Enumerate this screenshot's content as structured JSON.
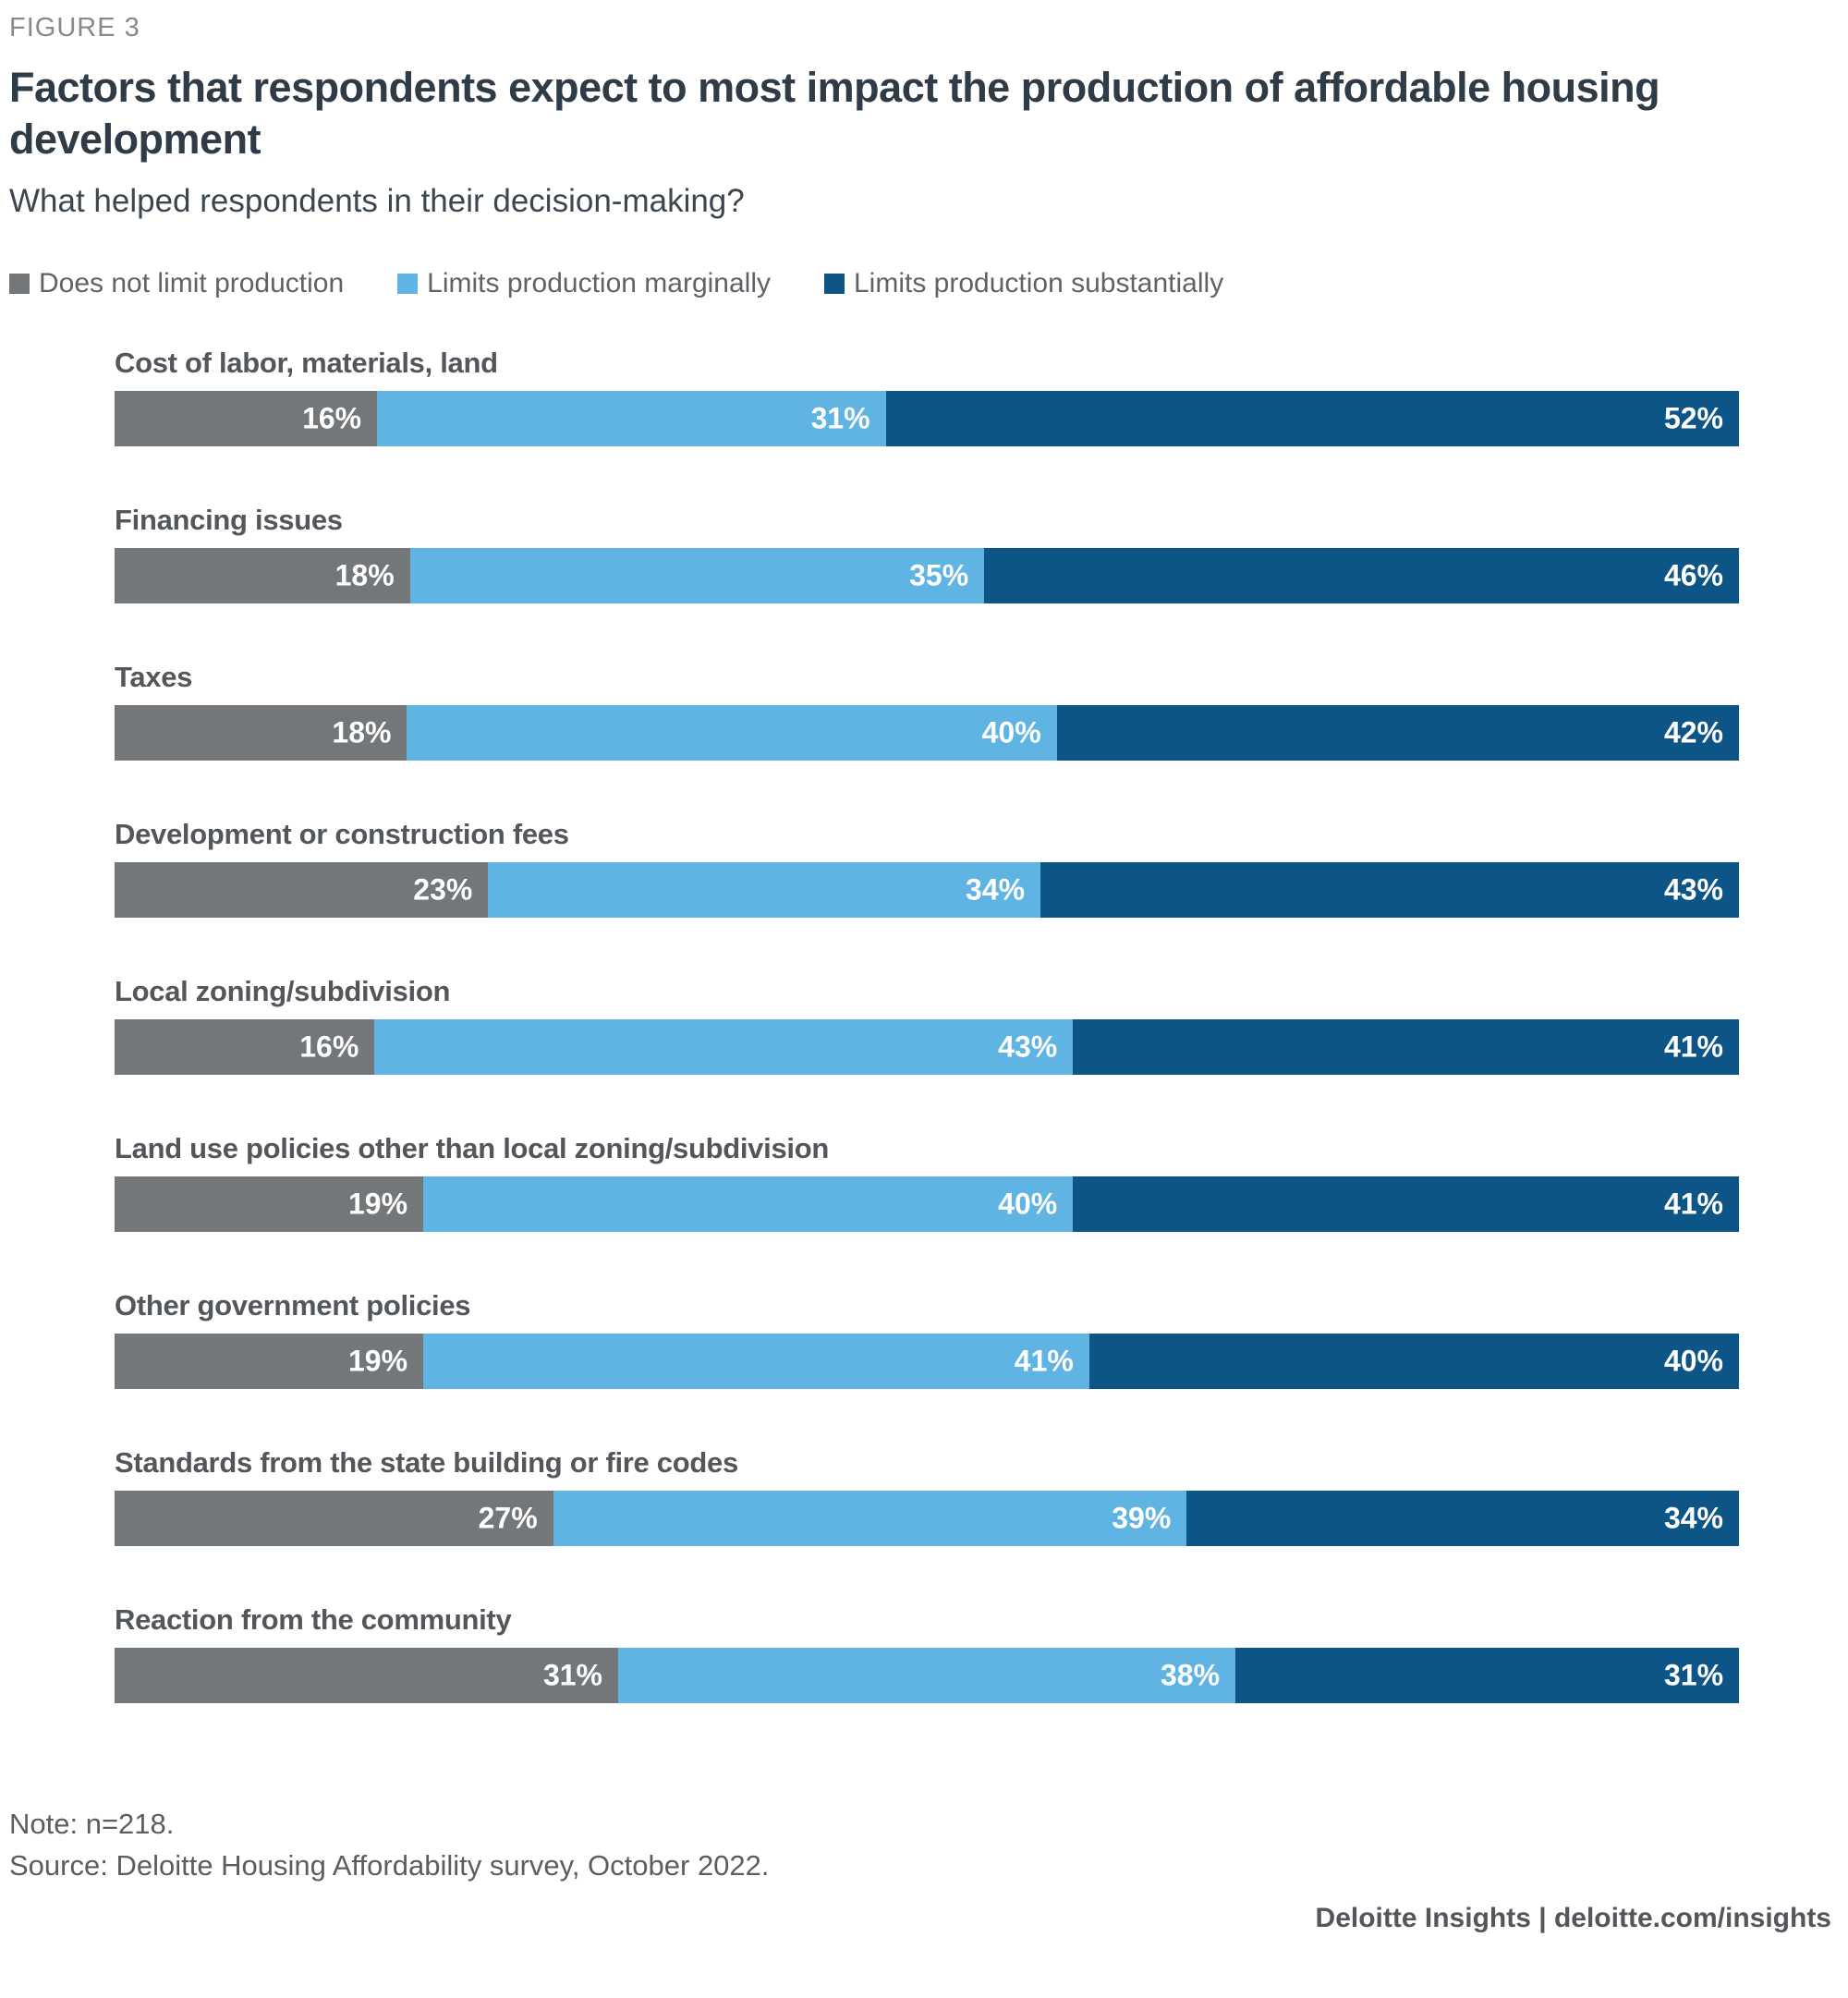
{
  "figure_label": "FIGURE 3",
  "title": "Factors that respondents expect to most impact the production of affordable housing development",
  "subtitle": "What helped respondents in their decision-making?",
  "chart_data": {
    "type": "bar",
    "variant": "horizontal-stacked-100pct",
    "legend_position": "top",
    "value_suffix": "%",
    "categories": [
      "Cost of labor, materials, land",
      "Financing issues",
      "Taxes",
      "Development or construction fees",
      "Local zoning/subdivision",
      "Land use policies other than local zoning/subdivision",
      "Other government policies",
      "Standards from the state building or fire codes",
      "Reaction from the community"
    ],
    "series": [
      {
        "key": "does-not-limit",
        "name": "Does not limit production",
        "color": "#74777a",
        "values": [
          16,
          18,
          18,
          23,
          16,
          19,
          19,
          27,
          31
        ]
      },
      {
        "key": "limits-marginally",
        "name": "Limits production marginally",
        "color": "#5fb4e4",
        "values": [
          31,
          35,
          40,
          34,
          43,
          40,
          41,
          39,
          38
        ]
      },
      {
        "key": "limits-substantially",
        "name": "Limits production substantially",
        "color": "#0d5586",
        "values": [
          52,
          46,
          42,
          43,
          41,
          41,
          40,
          34,
          31
        ]
      }
    ]
  },
  "footer": {
    "note": "Note: n=218.",
    "source": "Source: Deloitte Housing Affordability survey, October 2022.",
    "attribution": "Deloitte Insights | deloitte.com/insights"
  }
}
